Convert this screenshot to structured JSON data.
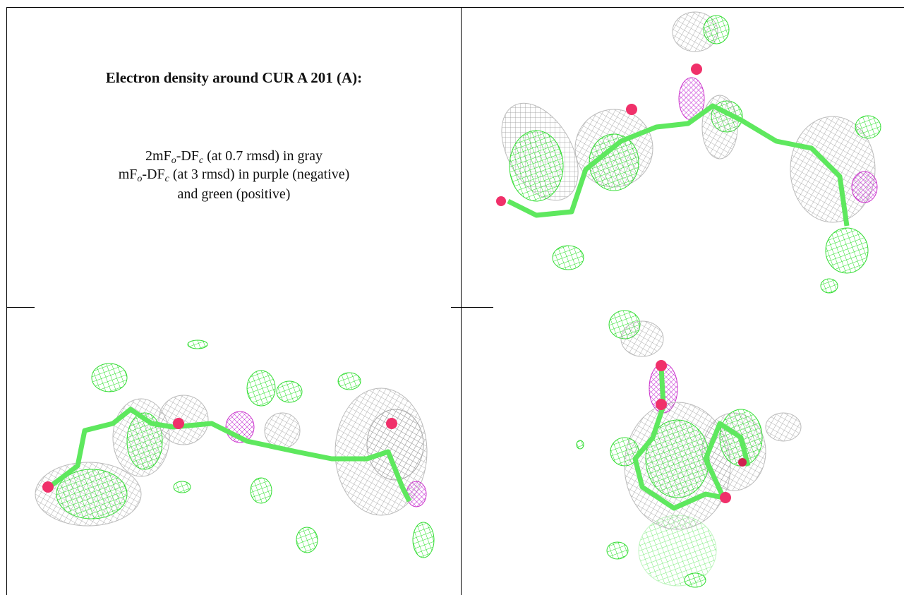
{
  "caption": {
    "title": "Electron density around CUR A 201 (A):",
    "lines": [
      {
        "parts": [
          "2mF",
          "o",
          "-DF",
          "c",
          " (at 0.7 rmsd) in gray"
        ]
      },
      {
        "parts": [
          "mF",
          "o",
          "-DF",
          "c",
          " (at 3 rmsd) in purple (negative)"
        ]
      },
      {
        "parts": [
          "and green (positive)"
        ]
      }
    ]
  }
}
